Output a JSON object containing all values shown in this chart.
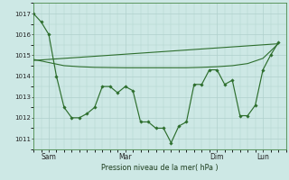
{
  "background_color": "#cde8e5",
  "grid_color": "#b0d0cc",
  "line_color": "#2d6e2d",
  "spine_color": "#4a8a4a",
  "xlabel_text": "Pression niveau de la mer( hPa )",
  "ylim": [
    1010.5,
    1017.5
  ],
  "yticks": [
    1011,
    1012,
    1013,
    1014,
    1015,
    1016,
    1017
  ],
  "xtick_labels": [
    "Sam",
    "Mar",
    "Dim",
    "Lun"
  ],
  "xtick_positions": [
    2,
    12,
    24,
    30
  ],
  "xlim": [
    0,
    33
  ],
  "line1_x": [
    0,
    1,
    2,
    3,
    4,
    5,
    6,
    7,
    8,
    9,
    10,
    11,
    12,
    13,
    14,
    15,
    16,
    17,
    18,
    19,
    20,
    21,
    22,
    23,
    24,
    25,
    26,
    27,
    28,
    29,
    30,
    31,
    32
  ],
  "line1_y": [
    1017.0,
    1016.6,
    1016.0,
    1014.0,
    1012.5,
    1012.0,
    1012.0,
    1012.2,
    1012.5,
    1013.5,
    1013.5,
    1013.2,
    1013.5,
    1013.3,
    1011.8,
    1011.8,
    1011.5,
    1011.5,
    1010.8,
    1011.6,
    1011.8,
    1013.6,
    1013.6,
    1014.3,
    1014.3,
    1013.6,
    1013.8,
    1012.1,
    1012.1,
    1012.6,
    1014.3,
    1015.0,
    1015.6
  ],
  "line2_x": [
    0,
    2,
    4,
    6,
    8,
    10,
    12,
    14,
    16,
    18,
    20,
    22,
    24,
    26,
    28,
    30,
    32
  ],
  "line2_y": [
    1014.8,
    1014.65,
    1014.5,
    1014.45,
    1014.42,
    1014.41,
    1014.4,
    1014.4,
    1014.4,
    1014.4,
    1014.4,
    1014.42,
    1014.45,
    1014.5,
    1014.6,
    1014.85,
    1015.55
  ],
  "line3_x": [
    0,
    32
  ],
  "line3_y": [
    1014.75,
    1015.55
  ]
}
